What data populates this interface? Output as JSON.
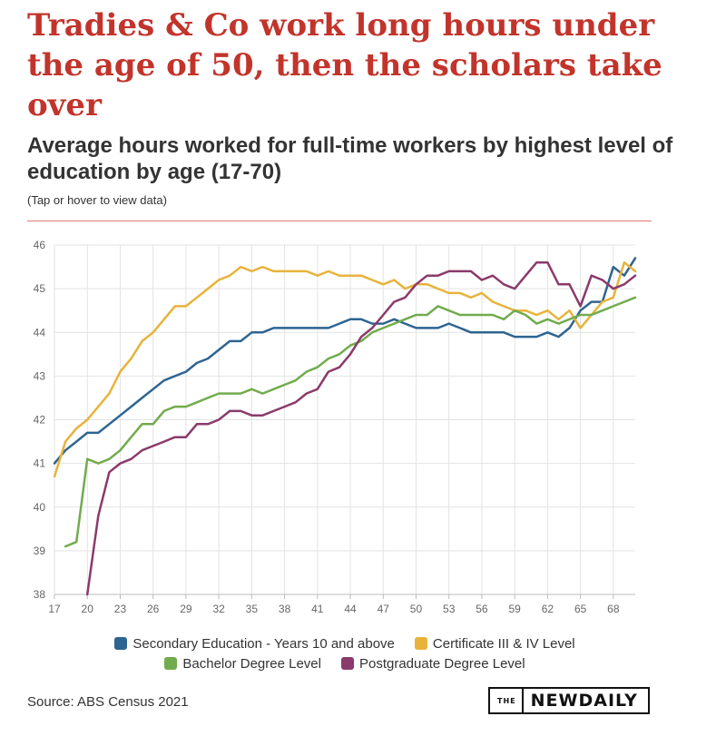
{
  "header": {
    "title": "Tradies & Co work long hours under the age of 50, then the scholars take over",
    "subtitle": "Average hours worked for full-time workers by highest level of education by age (17-70)",
    "note": "(Tap or hover to view data)"
  },
  "footer": {
    "source": "Source: ABS Census 2021",
    "logo_small": "THE",
    "logo_main": "NEWDAILY"
  },
  "chart_data": {
    "type": "line",
    "title": "Average hours worked for full-time workers by highest level of education by age (17-70)",
    "xlabel": "",
    "ylabel": "",
    "xlim": [
      17,
      70
    ],
    "ylim": [
      38,
      46
    ],
    "x_ticks": [
      17,
      20,
      23,
      26,
      29,
      32,
      35,
      38,
      41,
      44,
      47,
      50,
      53,
      56,
      59,
      62,
      65,
      68
    ],
    "y_ticks": [
      38,
      39,
      40,
      41,
      42,
      43,
      44,
      45,
      46
    ],
    "grid": true,
    "legend_position": "bottom",
    "series": [
      {
        "name": "Secondary Education - Years 10 and above",
        "color": "#2e6491",
        "x": [
          17,
          18,
          19,
          20,
          21,
          22,
          23,
          24,
          25,
          26,
          27,
          28,
          29,
          30,
          31,
          32,
          33,
          34,
          35,
          36,
          37,
          38,
          39,
          40,
          41,
          42,
          43,
          44,
          45,
          46,
          47,
          48,
          49,
          50,
          51,
          52,
          53,
          54,
          55,
          56,
          57,
          58,
          59,
          60,
          61,
          62,
          63,
          64,
          65,
          66,
          67,
          68,
          69,
          70
        ],
        "values": [
          41.0,
          41.3,
          41.5,
          41.7,
          41.7,
          41.9,
          42.1,
          42.3,
          42.5,
          42.7,
          42.9,
          43.0,
          43.1,
          43.3,
          43.4,
          43.6,
          43.8,
          43.8,
          44.0,
          44.0,
          44.1,
          44.1,
          44.1,
          44.1,
          44.1,
          44.1,
          44.2,
          44.3,
          44.3,
          44.2,
          44.2,
          44.3,
          44.2,
          44.1,
          44.1,
          44.1,
          44.2,
          44.1,
          44.0,
          44.0,
          44.0,
          44.0,
          43.9,
          43.9,
          43.9,
          44.0,
          43.9,
          44.1,
          44.5,
          44.7,
          44.7,
          45.5,
          45.3,
          45.7
        ]
      },
      {
        "name": "Certificate III & IV Level",
        "color": "#e8b33b",
        "x": [
          17,
          18,
          19,
          20,
          21,
          22,
          23,
          24,
          25,
          26,
          27,
          28,
          29,
          30,
          31,
          32,
          33,
          34,
          35,
          36,
          37,
          38,
          39,
          40,
          41,
          42,
          43,
          44,
          45,
          46,
          47,
          48,
          49,
          50,
          51,
          52,
          53,
          54,
          55,
          56,
          57,
          58,
          59,
          60,
          61,
          62,
          63,
          64,
          65,
          66,
          67,
          68,
          69,
          70
        ],
        "values": [
          40.7,
          41.5,
          41.8,
          42.0,
          42.3,
          42.6,
          43.1,
          43.4,
          43.8,
          44.0,
          44.3,
          44.6,
          44.6,
          44.8,
          45.0,
          45.2,
          45.3,
          45.5,
          45.4,
          45.5,
          45.4,
          45.4,
          45.4,
          45.4,
          45.3,
          45.4,
          45.3,
          45.3,
          45.3,
          45.2,
          45.1,
          45.2,
          45.0,
          45.1,
          45.1,
          45.0,
          44.9,
          44.9,
          44.8,
          44.9,
          44.7,
          44.6,
          44.5,
          44.5,
          44.4,
          44.5,
          44.3,
          44.5,
          44.1,
          44.4,
          44.7,
          44.8,
          45.6,
          45.4
        ]
      },
      {
        "name": "Bachelor Degree Level",
        "color": "#72ab4d",
        "x": [
          18,
          19,
          20,
          21,
          22,
          23,
          24,
          25,
          26,
          27,
          28,
          29,
          30,
          31,
          32,
          33,
          34,
          35,
          36,
          37,
          38,
          39,
          40,
          41,
          42,
          43,
          44,
          45,
          46,
          47,
          48,
          49,
          50,
          51,
          52,
          53,
          54,
          55,
          56,
          57,
          58,
          59,
          60,
          61,
          62,
          63,
          64,
          65,
          66,
          67,
          68,
          69,
          70
        ],
        "values": [
          39.1,
          39.2,
          41.1,
          41.0,
          41.1,
          41.3,
          41.6,
          41.9,
          41.9,
          42.2,
          42.3,
          42.3,
          42.4,
          42.5,
          42.6,
          42.6,
          42.6,
          42.7,
          42.6,
          42.7,
          42.8,
          42.9,
          43.1,
          43.2,
          43.4,
          43.5,
          43.7,
          43.8,
          44.0,
          44.1,
          44.2,
          44.3,
          44.4,
          44.4,
          44.6,
          44.5,
          44.4,
          44.4,
          44.4,
          44.4,
          44.3,
          44.5,
          44.4,
          44.2,
          44.3,
          44.2,
          44.3,
          44.4,
          44.4,
          44.5,
          44.6,
          44.7,
          44.8
        ]
      },
      {
        "name": "Postgraduate Degree Level",
        "color": "#8b3a6b",
        "x": [
          20,
          21,
          22,
          23,
          24,
          25,
          26,
          27,
          28,
          29,
          30,
          31,
          32,
          33,
          34,
          35,
          36,
          37,
          38,
          39,
          40,
          41,
          42,
          43,
          44,
          45,
          46,
          47,
          48,
          49,
          50,
          51,
          52,
          53,
          54,
          55,
          56,
          57,
          58,
          59,
          60,
          61,
          62,
          63,
          64,
          65,
          66,
          67,
          68,
          69,
          70
        ],
        "values": [
          38.0,
          39.8,
          40.8,
          41.0,
          41.1,
          41.3,
          41.4,
          41.5,
          41.6,
          41.6,
          41.9,
          41.9,
          42.0,
          42.2,
          42.2,
          42.1,
          42.1,
          42.2,
          42.3,
          42.4,
          42.6,
          42.7,
          43.1,
          43.2,
          43.5,
          43.9,
          44.1,
          44.4,
          44.7,
          44.8,
          45.1,
          45.3,
          45.3,
          45.4,
          45.4,
          45.4,
          45.2,
          45.3,
          45.1,
          45.0,
          45.3,
          45.6,
          45.6,
          45.1,
          45.1,
          44.6,
          45.3,
          45.2,
          45.0,
          45.1,
          45.3
        ]
      }
    ]
  }
}
